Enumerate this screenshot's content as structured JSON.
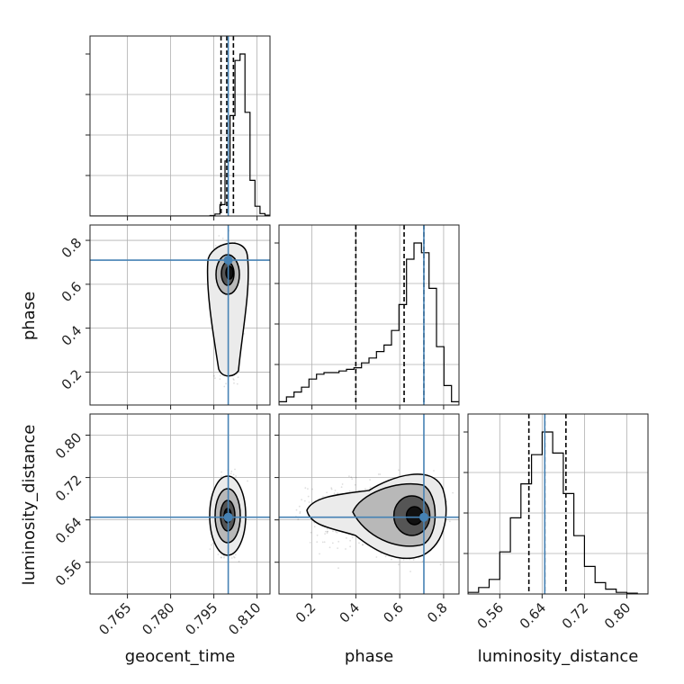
{
  "chart_data": {
    "type": "corner",
    "parameters": [
      "geocent_time",
      "phase",
      "luminosity_distance"
    ],
    "truths": {
      "geocent_time": 0.8,
      "phase": 0.71,
      "luminosity_distance": 0.645
    },
    "ranges": {
      "geocent_time": [
        0.752,
        0.8145
      ],
      "phase": [
        0.05,
        0.87
      ],
      "luminosity_distance": [
        0.5,
        0.84
      ]
    },
    "xticks": {
      "geocent_time": [
        "0.765",
        "0.780",
        "0.795",
        "0.810"
      ],
      "phase": [
        "0.2",
        "0.4",
        "0.6",
        "0.8"
      ],
      "luminosity_distance": [
        "0.56",
        "0.64",
        "0.72",
        "0.80"
      ]
    },
    "yticks": {
      "phase": [
        "0.2",
        "0.4",
        "0.6",
        "0.8"
      ],
      "luminosity_distance": [
        "0.56",
        "0.64",
        "0.72",
        "0.80"
      ]
    },
    "quantiles": {
      "geocent_time": [
        0.7975,
        0.7995,
        0.8018
      ],
      "phase": [
        0.4,
        0.62,
        0.71
      ],
      "luminosity_distance": [
        0.615,
        0.645,
        0.685
      ]
    },
    "histograms": {
      "geocent_time": {
        "range": [
          0.752,
          0.8145
        ],
        "counts": [
          0,
          0,
          0,
          0,
          0,
          0,
          0,
          0,
          0,
          0,
          0,
          0,
          0,
          0,
          0,
          0,
          0,
          0,
          0,
          0,
          0,
          0,
          0,
          0,
          0.3,
          1.2,
          7,
          34,
          62,
          96,
          100,
          64,
          22,
          6,
          1.5,
          0.5
        ]
      },
      "phase": {
        "range": [
          0.05,
          0.87
        ],
        "counts": [
          2,
          5,
          8,
          11,
          16,
          19,
          20,
          20,
          21,
          22,
          23,
          26,
          29,
          33,
          37,
          46,
          62,
          90,
          100,
          94,
          72,
          36,
          12,
          2
        ]
      },
      "luminosity_distance": {
        "range": [
          0.5,
          0.84
        ],
        "counts": [
          1,
          4,
          9,
          26,
          47,
          68,
          86,
          100,
          87,
          62,
          36,
          17,
          7,
          3,
          1,
          0.5,
          0
        ]
      }
    },
    "labels": {
      "x": [
        "geocent_time",
        "phase",
        "luminosity_distance"
      ],
      "y": [
        "phase",
        "luminosity_distance"
      ]
    }
  }
}
